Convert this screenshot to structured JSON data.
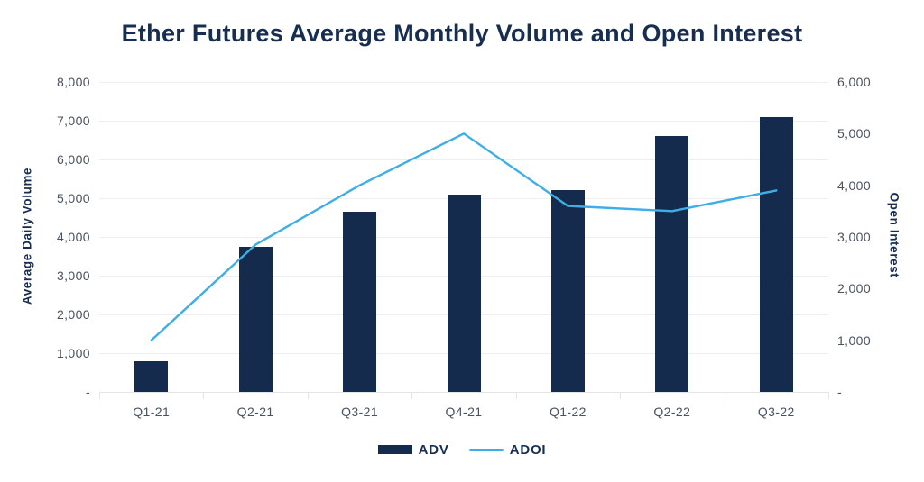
{
  "title": "Ether Futures Average Monthly Volume and Open Interest",
  "chart_data": {
    "type": "bar",
    "subtype": "bar-line-combo",
    "categories": [
      "Q1-21",
      "Q2-21",
      "Q3-21",
      "Q4-21",
      "Q1-22",
      "Q2-22",
      "Q3-22"
    ],
    "series": [
      {
        "name": "ADV",
        "type": "bar",
        "axis": "left",
        "values": [
          800,
          3750,
          4650,
          5100,
          5200,
          6600,
          7100
        ]
      },
      {
        "name": "ADOI",
        "type": "line",
        "axis": "right",
        "values": [
          1000,
          2850,
          4000,
          5000,
          3600,
          3500,
          3900
        ]
      }
    ],
    "left_axis": {
      "label": "Average Daily Volume",
      "min": 0,
      "max": 8000,
      "tick_interval": 1000,
      "tick_labels": [
        "8,000",
        "7,000",
        "6,000",
        "5,000",
        "4,000",
        "3,000",
        "2,000",
        "1,000",
        "-"
      ]
    },
    "right_axis": {
      "label": "Open Interest",
      "min": 0,
      "max": 6000,
      "tick_interval": 1000,
      "tick_labels": [
        "6,000",
        "5,000",
        "4,000",
        "3,000",
        "2,000",
        "1,000",
        "-"
      ]
    },
    "grid": "horizontal",
    "legend_position": "bottom"
  },
  "colors": {
    "bar": "#152B4E",
    "line": "#3FAEE4",
    "title_text": "#172E52",
    "tick_text": "#49525F",
    "gridline": "#EDEEF0",
    "axis_line": "#E2E4E8",
    "background": "#FFFFFF"
  }
}
